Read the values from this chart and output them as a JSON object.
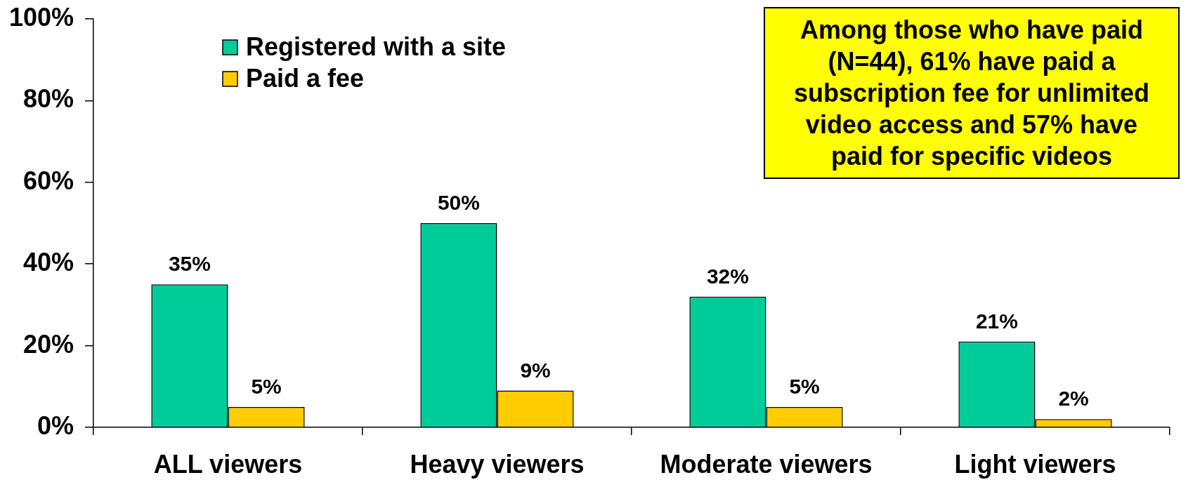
{
  "chart_data": {
    "type": "bar",
    "categories": [
      "ALL viewers",
      "Heavy viewers",
      "Moderate viewers",
      "Light viewers"
    ],
    "series": [
      {
        "name": "Registered with a site",
        "color": "#00cc99",
        "values": [
          35,
          50,
          32,
          21
        ],
        "value_labels": [
          "35%",
          "50%",
          "32%",
          "21%"
        ]
      },
      {
        "name": "Paid a fee",
        "color": "#ffcc00",
        "values": [
          5,
          9,
          5,
          2
        ],
        "value_labels": [
          "5%",
          "9%",
          "5%",
          "2%"
        ]
      }
    ],
    "ylim": [
      0,
      100
    ],
    "yticks": [
      {
        "value": 0,
        "label": "0%"
      },
      {
        "value": 20,
        "label": "20%"
      },
      {
        "value": 40,
        "label": "40%"
      },
      {
        "value": 60,
        "label": "60%"
      },
      {
        "value": 80,
        "label": "80%"
      },
      {
        "value": 100,
        "label": "100%"
      }
    ],
    "legend": "top left",
    "grid": false,
    "annotations": [
      "Among those who have paid (N=44), 61% have paid a subscription fee for unlimited video access and 57% have paid for specific videos"
    ]
  }
}
